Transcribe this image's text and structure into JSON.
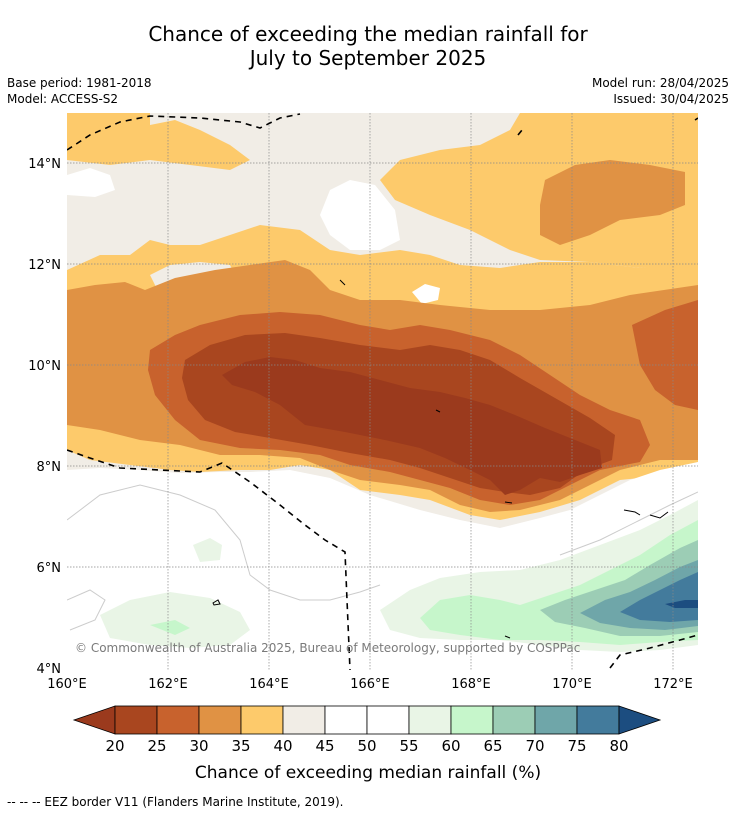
{
  "title_line1": "Chance of exceeding the median rainfall for",
  "title_line2": "July to September 2025",
  "base_period": "Base period: 1981-2018",
  "model": "Model: ACCESS-S2",
  "model_run": "Model run: 28/04/2025",
  "issued": "Issued: 30/04/2025",
  "copyright": "© Commonwealth of Australia 2025, Bureau of Meteorology, supported by COSPPac",
  "lon_labels": [
    "160°E",
    "162°E",
    "164°E",
    "166°E",
    "168°E",
    "170°E",
    "172°E"
  ],
  "lat_labels": [
    "14°N",
    "12°N",
    "10°N",
    "8°N",
    "6°N",
    "4°N"
  ],
  "colorbar": {
    "ticks": [
      "20",
      "25",
      "30",
      "35",
      "40",
      "45",
      "50",
      "55",
      "60",
      "65",
      "70",
      "75",
      "80"
    ],
    "colors": [
      "#a9461f",
      "#c8622d",
      "#e09244",
      "#fdca6b",
      "#f1ede6",
      "#ffffff",
      "#ffffff",
      "#e9f5e6",
      "#c6f6cb",
      "#9ccdb5",
      "#6fa6a9",
      "#437b9c"
    ],
    "under_color": "#9b3a1d",
    "over_color": "#1c4d80",
    "label": "Chance of exceeding median rainfall (%)"
  },
  "footnote": "-- -- -- EEZ border V11 (Flanders Marine Institute, 2019)."
}
